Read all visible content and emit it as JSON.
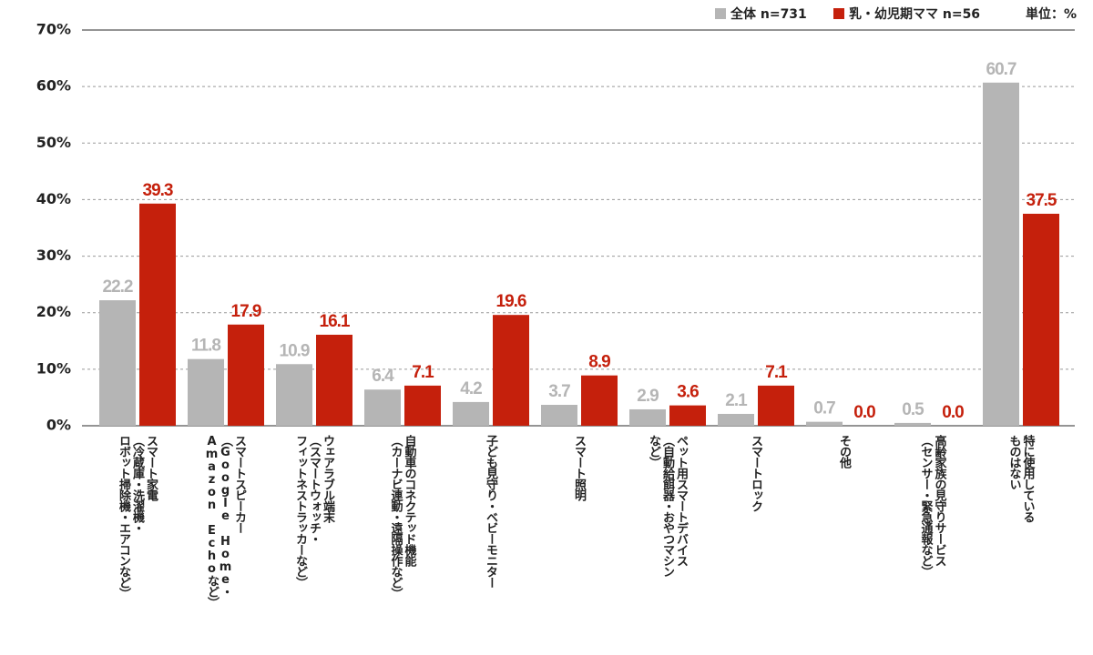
{
  "chart_data": {
    "type": "bar",
    "unit_label": "単位：%",
    "categories": [
      [
        "スマート家電",
        "（冷蔵庫・洗濯機・",
        "ロボット掃除機・エアコンなど）"
      ],
      [
        "スマートスピーカー",
        "（Google Home・",
        "Amazon Echoなど）"
      ],
      [
        "ウェアラブル端末",
        "（スマートウォッチ・",
        "フィットネストラッカーなど）"
      ],
      [
        "自動車のコネクテッド機能",
        "（カーナビ連動・遠隔操作など）"
      ],
      [
        "子ども見守り・ベビーモニター"
      ],
      [
        "スマート照明"
      ],
      [
        "ペット用スマートデバイス",
        "（自動給餌器・おやつマシン",
        "など）"
      ],
      [
        "スマートロック"
      ],
      [
        "その他"
      ],
      [
        "高齢家族の見守りサービス",
        "（センサー・緊急通報など）"
      ],
      [
        "特に使用している",
        "ものはない"
      ]
    ],
    "series": [
      {
        "name": "全体 n=731",
        "color": "#b5b5b5",
        "values": [
          22.2,
          11.8,
          10.9,
          6.4,
          4.2,
          3.7,
          2.9,
          2.1,
          0.7,
          0.5,
          60.7
        ],
        "value_labels": [
          "22.2",
          "11.8",
          "10.9",
          "6.4",
          "4.2",
          "3.7",
          "2.9",
          "2.1",
          "0.7",
          "0.5",
          "60.7"
        ]
      },
      {
        "name": "乳・幼児期ママ n=56",
        "color": "#c5200c",
        "values": [
          39.3,
          17.9,
          16.1,
          7.1,
          19.6,
          8.9,
          3.6,
          7.1,
          0.0,
          0.0,
          37.5
        ],
        "value_labels": [
          "39.3",
          "17.9",
          "16.1",
          "7.1",
          "19.6",
          "8.9",
          "3.6",
          "7.1",
          "0.0",
          "0.0",
          "37.5"
        ]
      }
    ],
    "ylim": [
      0,
      70
    ],
    "yticks": [
      {
        "value": 0,
        "label": "0%"
      },
      {
        "value": 10,
        "label": "10%"
      },
      {
        "value": 20,
        "label": "20%"
      },
      {
        "value": 30,
        "label": "30%"
      },
      {
        "value": 40,
        "label": "40%"
      },
      {
        "value": 50,
        "label": "50%"
      },
      {
        "value": 60,
        "label": "60%"
      },
      {
        "value": 70,
        "label": "70%"
      }
    ],
    "grid": true,
    "legend": "top-right"
  }
}
